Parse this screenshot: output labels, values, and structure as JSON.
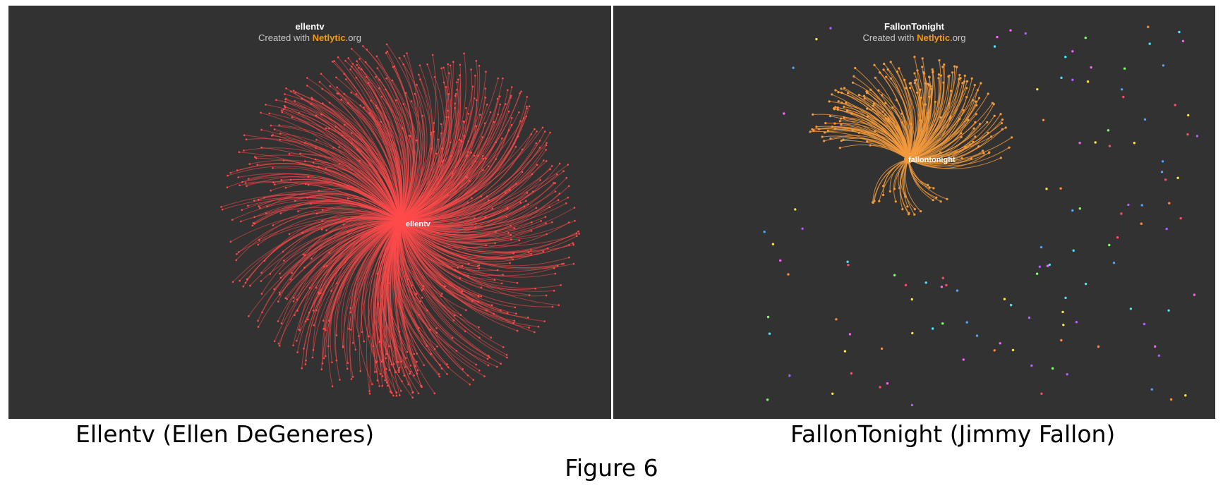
{
  "panels": [
    {
      "account": "ellentv",
      "credit_prefix": "Created with",
      "credit_brand": "Netlytic",
      "credit_suffix": ".org",
      "hub_label": "ellentv",
      "edge_color": "#ff4a4a",
      "caption": "Ellentv (Ellen DeGeneres)"
    },
    {
      "account": "FallonTonight",
      "credit_prefix": "Created with",
      "credit_brand": "Netlytic",
      "credit_suffix": ".org",
      "hub_label": "fallontonight",
      "edge_color": "#f39a3c",
      "isolate_colors": [
        "#4fa3ff",
        "#7dff6a",
        "#ff5cff",
        "#ffe14a",
        "#47e6ff",
        "#ff8a3d",
        "#b55cff",
        "#ff4a6a"
      ],
      "caption": "FallonTonight (Jimmy Fallon)"
    }
  ],
  "figure_label": "Figure 6"
}
